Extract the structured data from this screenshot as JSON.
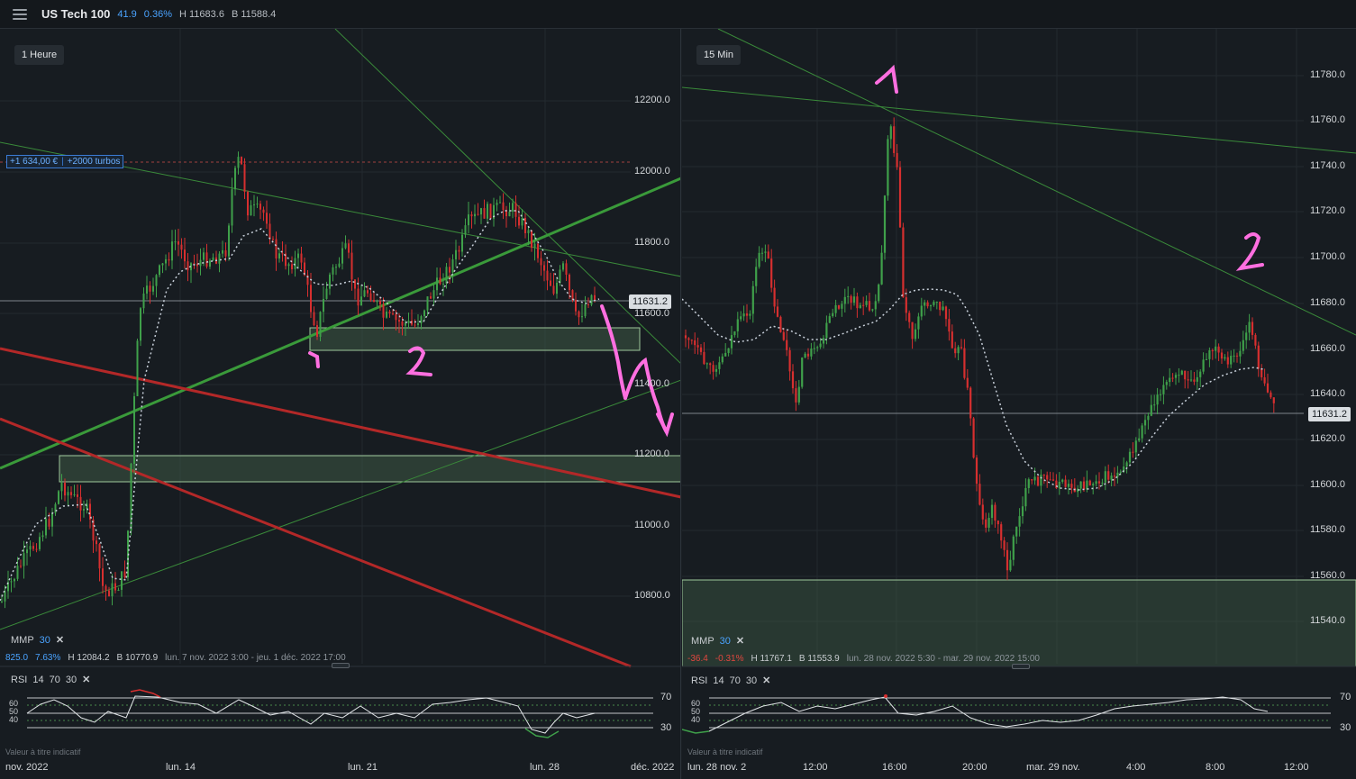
{
  "header": {
    "instrument": "US Tech 100",
    "change_points": "41.9",
    "change_percent": "0.36%",
    "high": "H 11683.6",
    "low": "B 11588.4"
  },
  "left_chart": {
    "timeframe": "1 Heure",
    "position_pnl": "+1 634,00 €",
    "position_size": "+2000 turbos",
    "current_price": "11631.2",
    "y_ticks": [
      "12200.0",
      "12000.0",
      "11800.0",
      "11600.0",
      "11400.0",
      "11200.0",
      "11000.0",
      "10800.0"
    ],
    "x_ticks": [
      "nov. 2022",
      "lun. 14",
      "lun. 21",
      "lun. 28",
      "déc. 2022"
    ],
    "ma": {
      "label": "MMP",
      "period": "30"
    },
    "stats": {
      "change": "825.0",
      "change_percent": "7.63%",
      "high": "H 12084.2",
      "low": "B 10770.9",
      "range": "lun. 7 nov. 2022 3:00 - jeu. 1 déc. 2022 17:00"
    },
    "rsi": {
      "label": "RSI",
      "p1": "14",
      "p2": "70",
      "p3": "30",
      "levels": [
        "70",
        "30"
      ],
      "inner_levels": [
        "60",
        "50",
        "40"
      ]
    },
    "note": "Valeur à titre indicatif",
    "annotations": [
      "1",
      "2"
    ]
  },
  "right_chart": {
    "timeframe": "15 Min",
    "current_price": "11631.2",
    "y_ticks": [
      "11780.0",
      "11760.0",
      "11740.0",
      "11720.0",
      "11700.0",
      "11680.0",
      "11660.0",
      "11640.0",
      "11620.0",
      "11600.0",
      "11580.0",
      "11560.0",
      "11540.0"
    ],
    "x_ticks": [
      "lun. 28 nov. 2",
      "12:00",
      "16:00",
      "20:00",
      "mar. 29 nov.",
      "4:00",
      "8:00",
      "12:00"
    ],
    "ma": {
      "label": "MMP",
      "period": "30"
    },
    "stats": {
      "change": "-36.4",
      "change_percent": "-0.31%",
      "high": "H 11767.1",
      "low": "B 11553.9",
      "range": "lun. 28 nov. 2022 5:30 - mar. 29 nov. 2022 15:00"
    },
    "rsi": {
      "label": "RSI",
      "p1": "14",
      "p2": "70",
      "p3": "30",
      "levels": [
        "70",
        "30"
      ],
      "inner_levels": [
        "60",
        "50",
        "40"
      ]
    },
    "note": "Valeur à titre indicatif",
    "annotations": [
      "1",
      "2"
    ]
  },
  "colors": {
    "bull": "#3fa04a",
    "bear": "#d62f2f",
    "annotation": "#ff6fe0",
    "zone": "#9ec79a"
  }
}
